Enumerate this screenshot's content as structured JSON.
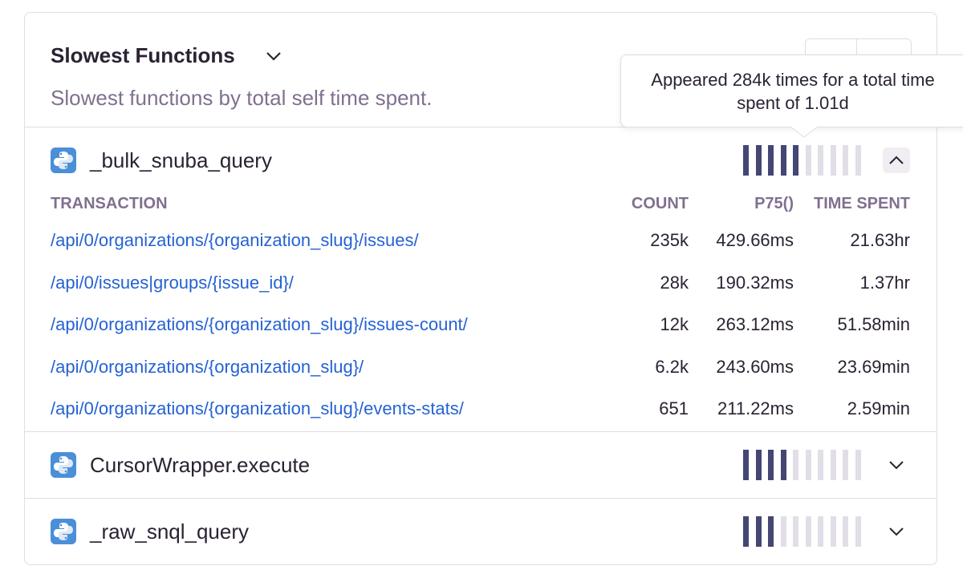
{
  "widget": {
    "title": "Slowest Functions",
    "description": "Slowest functions by total self time spent.",
    "tooltip": "Appeared 284k times for a total time spent of 1.01d",
    "functions": [
      {
        "name": "_bulk_snuba_query",
        "bars": 5
      },
      {
        "name": "CursorWrapper.execute",
        "bars": 4
      },
      {
        "name": "_raw_snql_query",
        "bars": 3
      }
    ],
    "table": {
      "headers": [
        "TRANSACTION",
        "COUNT",
        "P75()",
        "TIME SPENT"
      ],
      "rows": [
        [
          "/api/0/organizations/{organization_slug}/issues/",
          "235k",
          "429.66ms",
          "21.63hr"
        ],
        [
          "/api/0/issues|groups/{issue_id}/",
          "28k",
          "190.32ms",
          "1.37hr"
        ],
        [
          "/api/0/organizations/{organization_slug}/issues-count/",
          "12k",
          "263.12ms",
          "51.58min"
        ],
        [
          "/api/0/organizations/{organization_slug}/",
          "6.2k",
          "243.60ms",
          "23.69min"
        ],
        [
          "/api/0/organizations/{organization_slug}/events-stats/",
          "651",
          "211.22ms",
          "2.59min"
        ]
      ]
    }
  }
}
